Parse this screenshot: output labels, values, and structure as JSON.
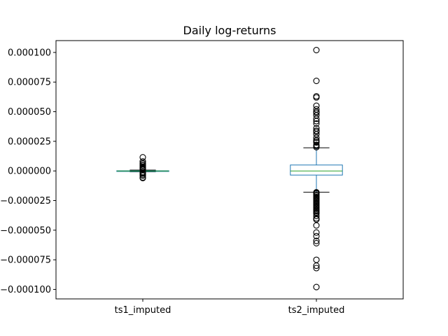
{
  "chart_data": {
    "type": "box",
    "title": "Daily log-returns",
    "xlabel": "",
    "ylabel": "",
    "ylim": [
      -0.000108,
      0.00011
    ],
    "yticks": [
      -0.0001,
      -7.5e-05,
      -5e-05,
      -2.5e-05,
      0.0,
      2.5e-05,
      5e-05,
      7.5e-05,
      0.0001
    ],
    "ytick_labels": [
      "−0.000100",
      "−0.000075",
      "−0.000050",
      "−0.000025",
      "0.000000",
      "0.000025",
      "0.000050",
      "0.000075",
      "0.000100"
    ],
    "categories": [
      "ts1_imputed",
      "ts2_imputed"
    ],
    "grid": false,
    "series": [
      {
        "whisker_low": -7e-07,
        "q1": -1.5e-07,
        "median": 0.0,
        "q3": 1.5e-07,
        "whisker_high": 7e-07,
        "outliers": [
          1.15e-05,
          8e-06,
          6.5e-06,
          5.5e-06,
          4.5e-06,
          3.5e-06,
          3e-06,
          2.5e-06,
          2e-06,
          1.5e-06,
          1e-06,
          -1e-06,
          -1.5e-06,
          -2e-06,
          -3e-06,
          -4e-06,
          -5.5e-06,
          -6e-06
        ]
      },
      {
        "whisker_low": -1.8e-05,
        "q1": -3.5e-06,
        "median": 0.0,
        "q3": 5e-06,
        "whisker_high": 1.95e-05,
        "outliers": [
          0.000102,
          7.6e-05,
          6.3e-05,
          6.2e-05,
          5.5e-05,
          5.2e-05,
          5e-05,
          4.9e-05,
          4.7e-05,
          4.4e-05,
          4.2e-05,
          4e-05,
          3.6e-05,
          3.4e-05,
          3.3e-05,
          3.1e-05,
          2.8e-05,
          2.6e-05,
          2.5e-05,
          2.4e-05,
          2.2e-05,
          2.1e-05,
          2e-05,
          -1.8e-05,
          -1.85e-05,
          -1.9e-05,
          -2e-05,
          -2.1e-05,
          -2.2e-05,
          -2.3e-05,
          -2.4e-05,
          -2.5e-05,
          -2.6e-05,
          -2.7e-05,
          -2.8e-05,
          -2.9e-05,
          -3e-05,
          -3.1e-05,
          -3.2e-05,
          -3.3e-05,
          -3.4e-05,
          -3.5e-05,
          -3.6e-05,
          -3.8e-05,
          -4e-05,
          -4.1e-05,
          -4.6e-05,
          -5.2e-05,
          -5.5e-05,
          -5.9e-05,
          -6.1e-05,
          -7.5e-05,
          -8e-05,
          -8.2e-05,
          -9.8e-05
        ]
      }
    ],
    "colors": {
      "box": "#1f77b4",
      "median": "#2ca02c",
      "whisker": "#000000",
      "outlier": "#000000",
      "axes": "#000000"
    }
  }
}
